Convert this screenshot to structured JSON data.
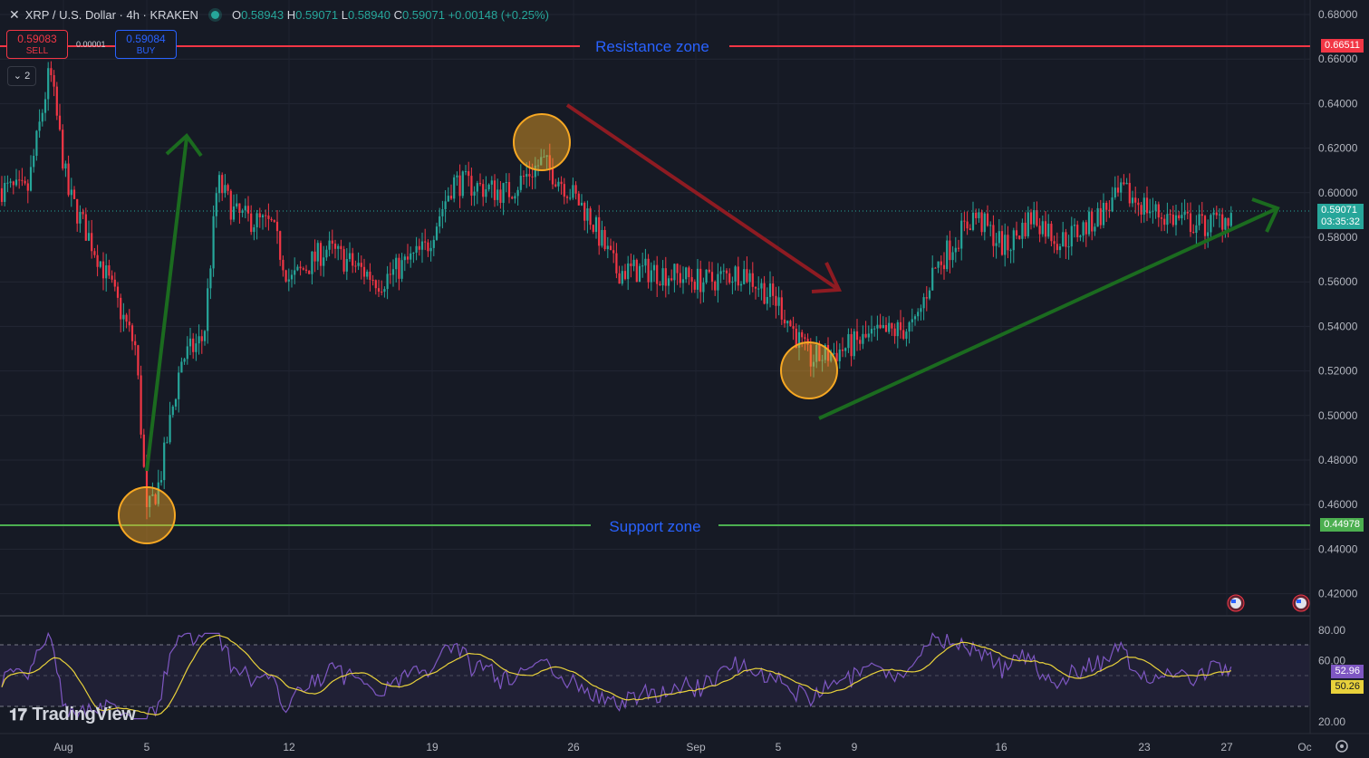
{
  "header": {
    "symbol": "XRP / U.S. Dollar · 4h · KRAKEN",
    "o_label": "O",
    "o_value": "0.58943",
    "h_label": "H",
    "h_value": "0.59071",
    "l_label": "L",
    "l_value": "0.58940",
    "c_label": "C",
    "c_value": "0.59071",
    "change": "+0.00148 (+0.25%)"
  },
  "trade": {
    "sell_price": "0.59083",
    "sell_label": "SELL",
    "spread": "0.00001",
    "buy_price": "0.59084",
    "buy_label": "BUY"
  },
  "layers_count": "2",
  "annotations": {
    "resistance_label": "Resistance zone",
    "support_label": "Support zone"
  },
  "price_axis": {
    "ticks": [
      "0.68000",
      "0.66000",
      "0.64000",
      "0.62000",
      "0.60000",
      "0.58000",
      "0.56000",
      "0.54000",
      "0.52000",
      "0.50000",
      "0.48000",
      "0.46000",
      "0.44000",
      "0.42000"
    ],
    "resistance_badge": "0.66511",
    "current_price": "0.59071",
    "countdown": "03:35:32",
    "support_badge": "0.44978"
  },
  "rsi_axis": {
    "ticks": [
      "80.00",
      "60.00",
      "20.00"
    ],
    "rsi_value": "52.96",
    "ma_value": "50.26"
  },
  "time_axis": [
    "Aug",
    "5",
    "12",
    "19",
    "26",
    "Sep",
    "5",
    "9",
    "16",
    "23",
    "27",
    "Oc"
  ],
  "branding": "TradingView",
  "colors": {
    "bg": "#161a25",
    "up": "#26a69a",
    "down": "#f23645",
    "resistance": "#f23645",
    "support": "#4caf50",
    "label_blue": "#2962ff",
    "trend_green": "#1b6b1f",
    "trend_red": "#8e1b22",
    "circle": "#f7a823",
    "rsi_line": "#7e57c2",
    "rsi_ma": "#e8d13b"
  },
  "chart_data": {
    "type": "candlestick",
    "title": "XRP / U.S. Dollar · 4h · KRAKEN",
    "ylim": [
      0.41,
      0.685
    ],
    "levels": {
      "resistance": 0.66511,
      "support": 0.44978
    },
    "key_points": [
      {
        "x": "Aug 5",
        "price": 0.455
      },
      {
        "x": "Aug 24",
        "price": 0.62
      },
      {
        "x": "Sep 6",
        "price": 0.52
      },
      {
        "x": "Sep 27",
        "price": 0.59071
      }
    ],
    "rsi": {
      "ylim": [
        20,
        80
      ],
      "bands": [
        70,
        30
      ],
      "value": 52.96,
      "ma": 50.26
    }
  }
}
